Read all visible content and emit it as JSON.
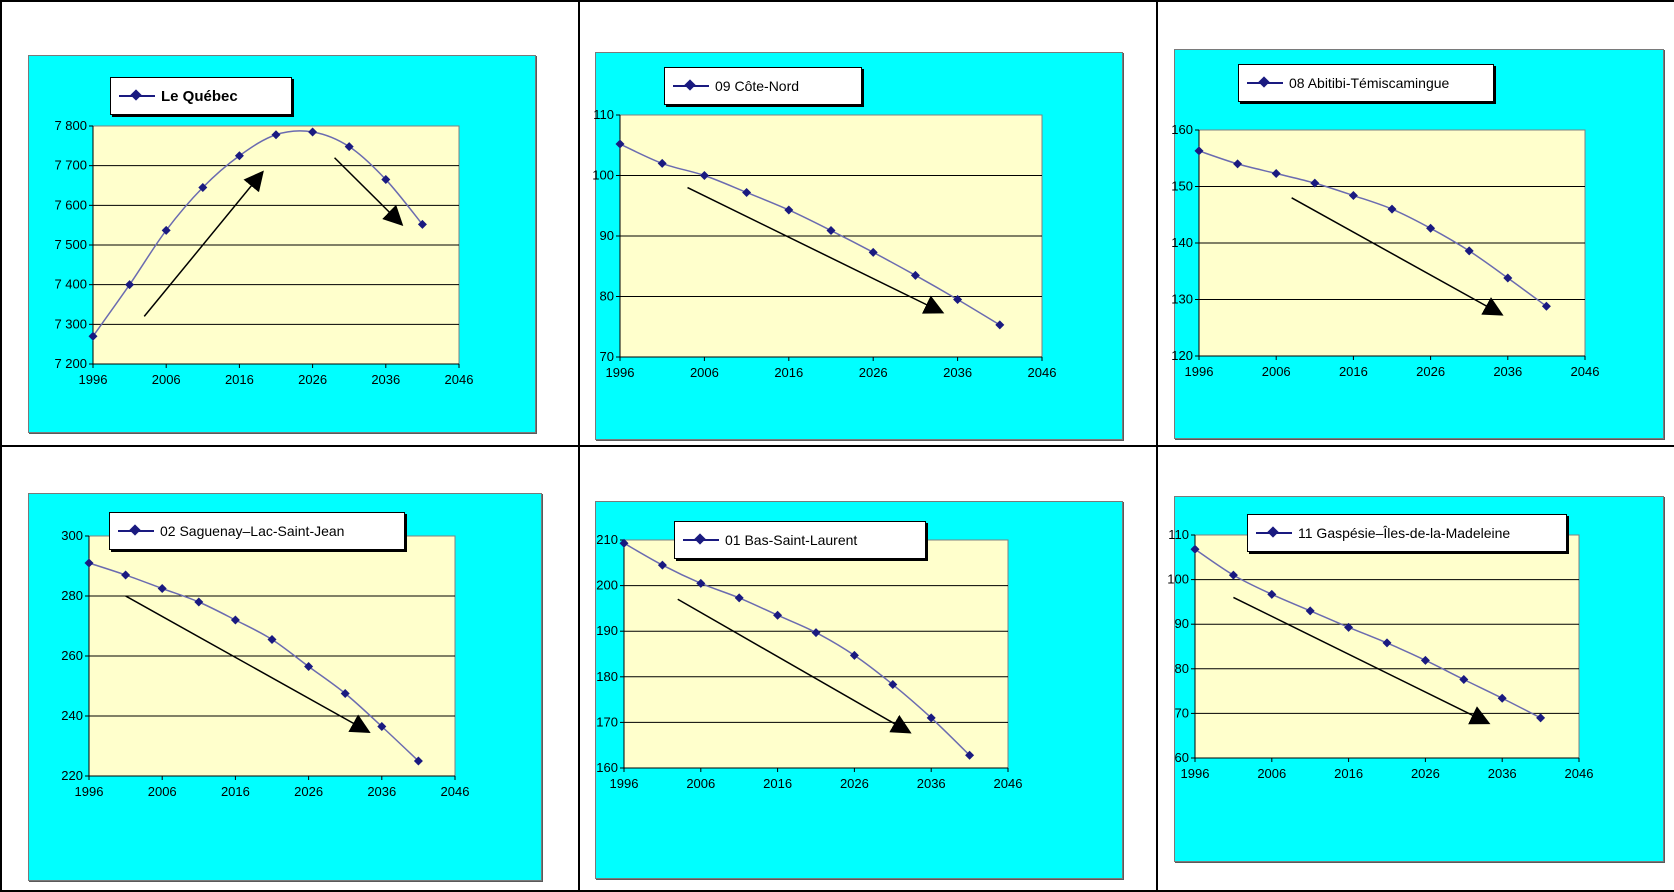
{
  "colors": {
    "panel_bg": "#00ffff",
    "plot_bg": "#ffffcc",
    "series": "#1a1a80",
    "grid": "#000000"
  },
  "chart_data": [
    {
      "type": "line",
      "legend": "Le Québec",
      "x": [
        1996,
        2001,
        2006,
        2011,
        2016,
        2021,
        2026,
        2031,
        2036,
        2041
      ],
      "values": [
        7270,
        7400,
        7537,
        7645,
        7725,
        7778,
        7785,
        7748,
        7665,
        7552
      ],
      "xlim": [
        1996,
        2046
      ],
      "xticks": [
        1996,
        2006,
        2016,
        2026,
        2036,
        2046
      ],
      "ylim": [
        7200,
        7800
      ],
      "yticks": [
        "7 200",
        "7 300",
        "7 400",
        "7 500",
        "7 600",
        "7 700",
        "7 800"
      ],
      "ytick_values": [
        7200,
        7300,
        7400,
        7500,
        7600,
        7700,
        7800
      ],
      "grid": true,
      "trend_arrows": [
        {
          "from": [
            2003,
            7320
          ],
          "to": [
            2019,
            7680
          ]
        },
        {
          "from": [
            2029,
            7720
          ],
          "to": [
            2038,
            7555
          ]
        }
      ]
    },
    {
      "type": "line",
      "legend": "09   Côte-Nord",
      "x": [
        1996,
        2001,
        2006,
        2011,
        2016,
        2021,
        2026,
        2031,
        2036,
        2041
      ],
      "values": [
        105.2,
        102.0,
        100.0,
        97.2,
        94.3,
        90.9,
        87.3,
        83.5,
        79.5,
        75.3
      ],
      "xlim": [
        1996,
        2046
      ],
      "xticks": [
        1996,
        2006,
        2016,
        2026,
        2036,
        2046
      ],
      "ylim": [
        70,
        110
      ],
      "yticks": [
        "70",
        "80",
        "90",
        "100",
        "110"
      ],
      "ytick_values": [
        70,
        80,
        90,
        100,
        110
      ],
      "grid": true,
      "trend_arrows": [
        {
          "from": [
            2004,
            98
          ],
          "to": [
            2034,
            77.5
          ]
        }
      ]
    },
    {
      "type": "line",
      "legend": "08   Abitibi-Témiscamingue",
      "x": [
        1996,
        2001,
        2006,
        2011,
        2016,
        2021,
        2026,
        2031,
        2036,
        2041
      ],
      "values": [
        156.3,
        154.0,
        152.3,
        150.6,
        148.4,
        146.0,
        142.6,
        138.6,
        133.8,
        128.8
      ],
      "xlim": [
        1996,
        2046
      ],
      "xticks": [
        1996,
        2006,
        2016,
        2026,
        2036,
        2046
      ],
      "ylim": [
        120,
        160
      ],
      "yticks": [
        "120",
        "130",
        "140",
        "150",
        "160"
      ],
      "ytick_values": [
        120,
        130,
        140,
        150,
        160
      ],
      "grid": true,
      "trend_arrows": [
        {
          "from": [
            2008,
            148
          ],
          "to": [
            2035,
            127.5
          ]
        }
      ]
    },
    {
      "type": "line",
      "legend": "02   Saguenay–Lac-Saint-Jean",
      "x": [
        1996,
        2001,
        2006,
        2011,
        2016,
        2021,
        2026,
        2031,
        2036,
        2041
      ],
      "values": [
        291,
        287,
        282.5,
        278,
        272,
        265.5,
        256.5,
        247.5,
        236.5,
        225
      ],
      "xlim": [
        1996,
        2046
      ],
      "xticks": [
        1996,
        2006,
        2016,
        2026,
        2036,
        2046
      ],
      "ylim": [
        220,
        300
      ],
      "yticks": [
        "220",
        "240",
        "260",
        "280",
        "300"
      ],
      "ytick_values": [
        220,
        240,
        260,
        280,
        300
      ],
      "grid": true,
      "trend_arrows": [
        {
          "from": [
            2001,
            280
          ],
          "to": [
            2034,
            235
          ]
        }
      ]
    },
    {
      "type": "line",
      "legend": "01   Bas-Saint-Laurent",
      "x": [
        1996,
        2001,
        2006,
        2011,
        2016,
        2021,
        2026,
        2031,
        2036,
        2041
      ],
      "values": [
        209.3,
        204.5,
        200.5,
        197.3,
        193.5,
        189.7,
        184.7,
        178.3,
        171.0,
        162.8
      ],
      "xlim": [
        1996,
        2046
      ],
      "xticks": [
        1996,
        2006,
        2016,
        2026,
        2036,
        2046
      ],
      "ylim": [
        160,
        210
      ],
      "yticks": [
        "160",
        "170",
        "180",
        "190",
        "200",
        "210"
      ],
      "ytick_values": [
        160,
        170,
        180,
        190,
        200,
        210
      ],
      "grid": true,
      "trend_arrows": [
        {
          "from": [
            2003,
            197
          ],
          "to": [
            2033,
            168
          ]
        }
      ]
    },
    {
      "type": "line",
      "legend": "11   Gaspésie–Îles-de-la-Madeleine",
      "x": [
        1996,
        2001,
        2006,
        2011,
        2016,
        2021,
        2026,
        2031,
        2036,
        2041
      ],
      "values": [
        106.8,
        101.0,
        96.7,
        93.0,
        89.3,
        85.8,
        81.9,
        77.6,
        73.4,
        69.0
      ],
      "xlim": [
        1996,
        2046
      ],
      "xticks": [
        1996,
        2006,
        2016,
        2026,
        2036,
        2046
      ],
      "ylim": [
        60,
        110
      ],
      "yticks": [
        "60",
        "70",
        "80",
        "90",
        "100",
        "110"
      ],
      "ytick_values": [
        60,
        70,
        80,
        90,
        100,
        110
      ],
      "grid": true,
      "trend_arrows": [
        {
          "from": [
            2001,
            96
          ],
          "to": [
            2034,
            68
          ]
        }
      ]
    }
  ]
}
